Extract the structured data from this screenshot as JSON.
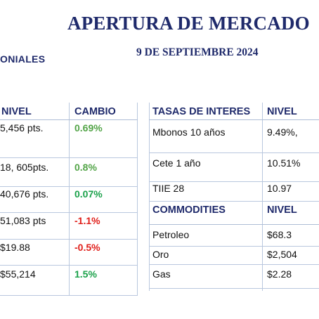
{
  "header": {
    "title": "APERTURA DE MERCADO",
    "date": "9 DE SEPTIEMBRE 2024",
    "section_left": "ONIALES"
  },
  "left_table": {
    "col1": "NIVEL",
    "col2": "CAMBIO",
    "rows": [
      {
        "nivel": "5,456 pts.",
        "cambio": "0.69%",
        "status": "up"
      },
      {
        "nivel": "18, 605pts.",
        "cambio": "0.8%",
        "status": "up"
      },
      {
        "nivel": "40,676 pts.",
        "cambio": "0.07%",
        "status": "up"
      },
      {
        "nivel": "51,083 pts",
        "cambio": "-1.1%",
        "status": "down"
      },
      {
        "nivel": "$19.88",
        "cambio": "-0.5%",
        "status": "down"
      },
      {
        "nivel": "$55,214",
        "cambio": "1.5%",
        "status": "up"
      }
    ]
  },
  "right_table": {
    "rates_header": "TASAS DE INTERES",
    "nivel_header": "NIVEL",
    "rates": [
      {
        "name": "Mbonos 10 años",
        "value": "9.49%,"
      },
      {
        "name": "Cete 1 año",
        "value": "10.51%"
      },
      {
        "name": "TIIE 28",
        "value": "10.97"
      }
    ],
    "commodities_header": "COMMODITIES",
    "commodities_nivel_header": "NIVEL",
    "commodities": [
      {
        "name": "Petroleo",
        "value": "$68.3"
      },
      {
        "name": "Oro",
        "value": "$2,504"
      },
      {
        "name": "Gas",
        "value": "$2.28"
      }
    ]
  },
  "colors": {
    "navy": "#1f2a6b",
    "up": "#52a447",
    "down": "#e0201b",
    "rule": "#b9c7de"
  }
}
